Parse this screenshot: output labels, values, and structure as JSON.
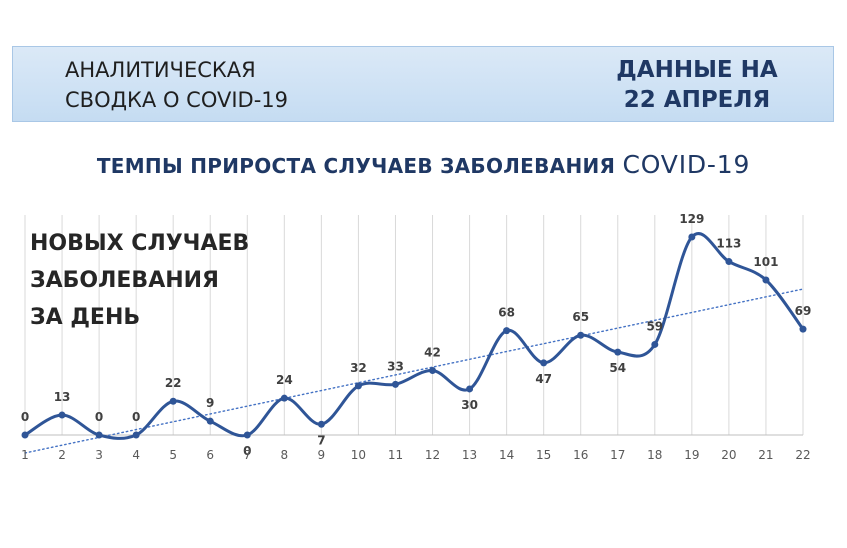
{
  "header": {
    "left_line1": "АНАЛИТИЧЕСКАЯ",
    "left_line2": "СВОДКА О COVID-19",
    "right_line1": "ДАННЫЕ НА",
    "right_line2": "22 АПРЕЛЯ"
  },
  "title_part1": "ТЕМПЫ ПРИРОСТА СЛУЧАЕВ ЗАБОЛЕВАНИЯ",
  "title_part2": "COVID-19",
  "overlay": {
    "line1": "НОВЫХ СЛУЧАЕВ",
    "line2": "ЗАБОЛЕВАНИЯ",
    "line3": "ЗА ДЕНЬ"
  },
  "colors": {
    "line": "#2f5597",
    "trend": "#4472c4",
    "grid": "#d9d9d9",
    "title": "#1f3864",
    "banner": "#c5dcf2"
  },
  "chart_data": {
    "type": "line",
    "title": "ТЕМПЫ ПРИРОСТА СЛУЧАЕВ ЗАБОЛЕВАНИЯ COVID-19",
    "x": [
      1,
      2,
      3,
      4,
      5,
      6,
      7,
      8,
      9,
      10,
      11,
      12,
      13,
      14,
      15,
      16,
      17,
      18,
      19,
      20,
      21,
      22
    ],
    "series": [
      {
        "name": "",
        "values": [
          0,
          13,
          0,
          0,
          22,
          9,
          0,
          24,
          7,
          32,
          33,
          42,
          30,
          68,
          47,
          65,
          54,
          59,
          129,
          113,
          101,
          69
        ]
      }
    ],
    "trendline": "linear",
    "smooth": true,
    "ylim": [
      0,
      129
    ],
    "grid": "vertical",
    "legend": "none",
    "data_labels": true
  }
}
